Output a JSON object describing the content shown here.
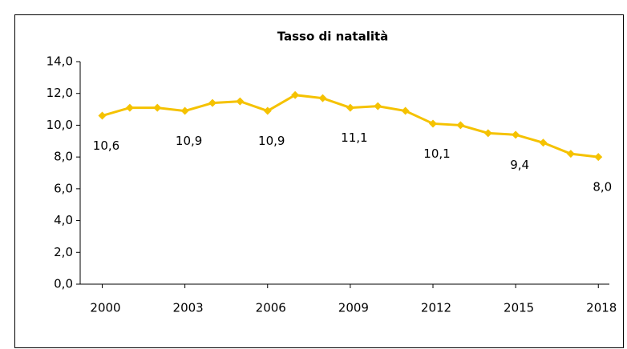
{
  "chart_data": {
    "type": "line",
    "title": "Tasso di natalità",
    "x": [
      2000,
      2001,
      2002,
      2003,
      2004,
      2005,
      2006,
      2007,
      2008,
      2009,
      2010,
      2011,
      2012,
      2013,
      2014,
      2015,
      2016,
      2017,
      2018
    ],
    "values": [
      10.6,
      11.1,
      11.1,
      10.9,
      11.4,
      11.5,
      10.9,
      11.9,
      11.7,
      11.1,
      11.2,
      10.9,
      10.1,
      10.0,
      9.5,
      9.4,
      8.9,
      8.2,
      8.0
    ],
    "value_labels": [
      "10,6",
      null,
      null,
      "10,9",
      null,
      null,
      "10,9",
      null,
      null,
      "11,1",
      null,
      null,
      "10,1",
      null,
      null,
      "9,4",
      null,
      null,
      "8,0"
    ],
    "color": "#f5c200",
    "xlim": [
      1999.2,
      2018.4
    ],
    "xticks": [
      2000,
      2003,
      2006,
      2009,
      2012,
      2015,
      2018
    ],
    "ylim": [
      0,
      14
    ],
    "yticks": [
      {
        "value": 0,
        "label": "0,0"
      },
      {
        "value": 2,
        "label": "2,0"
      },
      {
        "value": 4,
        "label": "4,0"
      },
      {
        "value": 6,
        "label": "6,0"
      },
      {
        "value": 8,
        "label": "8,0"
      },
      {
        "value": 10,
        "label": "10,0"
      },
      {
        "value": 12,
        "label": "12,0"
      },
      {
        "value": 14,
        "label": "14,0"
      }
    ],
    "grid": false
  }
}
